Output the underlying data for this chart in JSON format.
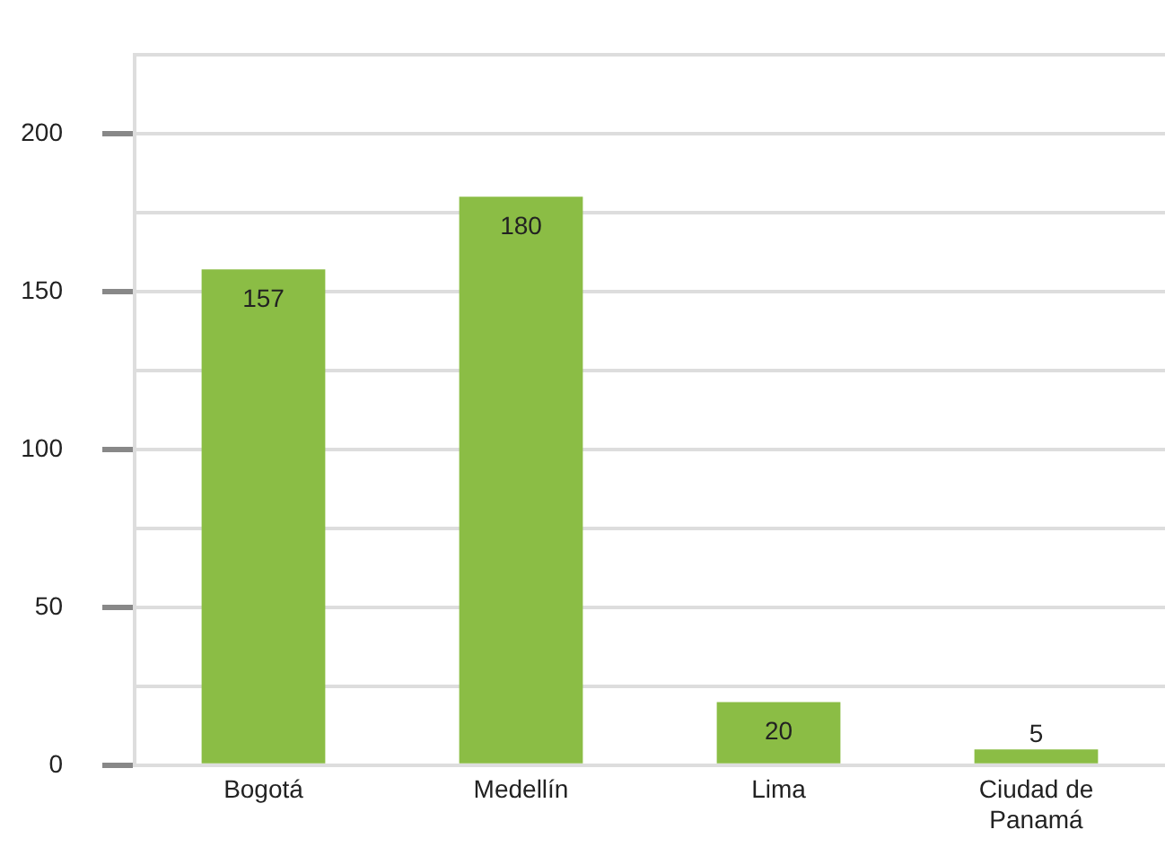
{
  "chart_data": {
    "type": "bar",
    "categories": [
      "Bogotá",
      "Medellín",
      "Lima",
      "Ciudad de Panamá"
    ],
    "values": [
      157,
      180,
      20,
      5
    ],
    "color": "#8bbd45",
    "ylim": [
      0,
      225
    ],
    "yticks": [
      0,
      {
        "value": 25,
        "label": null
      },
      50,
      {
        "value": 75,
        "label": null
      },
      100,
      {
        "value": 125,
        "label": null
      },
      150,
      {
        "value": 175,
        "label": null
      },
      200,
      {
        "value": 225,
        "label": null
      }
    ],
    "grid": "y",
    "data_labels": true,
    "legend": false
  }
}
